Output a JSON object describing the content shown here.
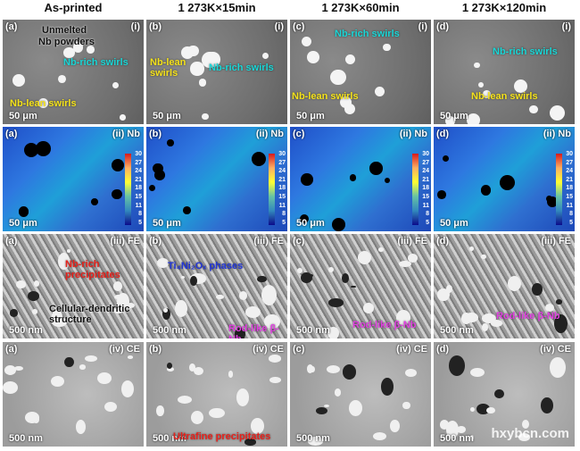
{
  "columns": [
    "As-printed",
    "1 273K×15min",
    "1 273K×60min",
    "1 273K×120min"
  ],
  "rows": [
    {
      "tag": "(i)",
      "scale": "50 μm",
      "panels": [
        {
          "letter": "(a)",
          "notes": [
            "Unmelted",
            "Nb powders",
            "Nb-rich swirls",
            "Nb-lean swirls"
          ]
        },
        {
          "letter": "(b)",
          "notes": [
            "Nb-lean swirls",
            "Nb-rich swirls"
          ]
        },
        {
          "letter": "(c)",
          "notes": [
            "Nb-rich swirls",
            "Nb-lean swirls"
          ]
        },
        {
          "letter": "(d)",
          "notes": [
            "Nb-rich swirls",
            "Nb-lean swirls"
          ]
        }
      ]
    },
    {
      "tag": "(ii) Nb",
      "scale": "50 μm",
      "panels": [
        {
          "letter": "(a)",
          "notes": []
        },
        {
          "letter": "(b)",
          "notes": []
        },
        {
          "letter": "(c)",
          "notes": []
        },
        {
          "letter": "(d)",
          "notes": []
        }
      ]
    },
    {
      "tag": "(iii) FE",
      "scale": "500 nm",
      "panels": [
        {
          "letter": "(a)",
          "notes": [
            "Nb-rich precipitates",
            "Cellular-dendritic structure"
          ]
        },
        {
          "letter": "(b)",
          "notes": [
            "Ti₄Ni₂Oₓ phases",
            "Rod-like β-Nb"
          ]
        },
        {
          "letter": "(c)",
          "notes": [
            "Rod-like β-Nb"
          ]
        },
        {
          "letter": "(d)",
          "notes": [
            "Rod-like β-Nb"
          ]
        }
      ]
    },
    {
      "tag": "(iv) CE",
      "scale": "500 nm",
      "panels": [
        {
          "letter": "(a)",
          "notes": []
        },
        {
          "letter": "(b)",
          "notes": [
            "Ultrafine precipitates"
          ]
        },
        {
          "letter": "(c)",
          "notes": []
        },
        {
          "letter": "(d)",
          "notes": []
        }
      ]
    }
  ],
  "colorbar_ticks": [
    30,
    27,
    24,
    21,
    18,
    15,
    11,
    8,
    5
  ],
  "watermark": "hxybcn.com"
}
